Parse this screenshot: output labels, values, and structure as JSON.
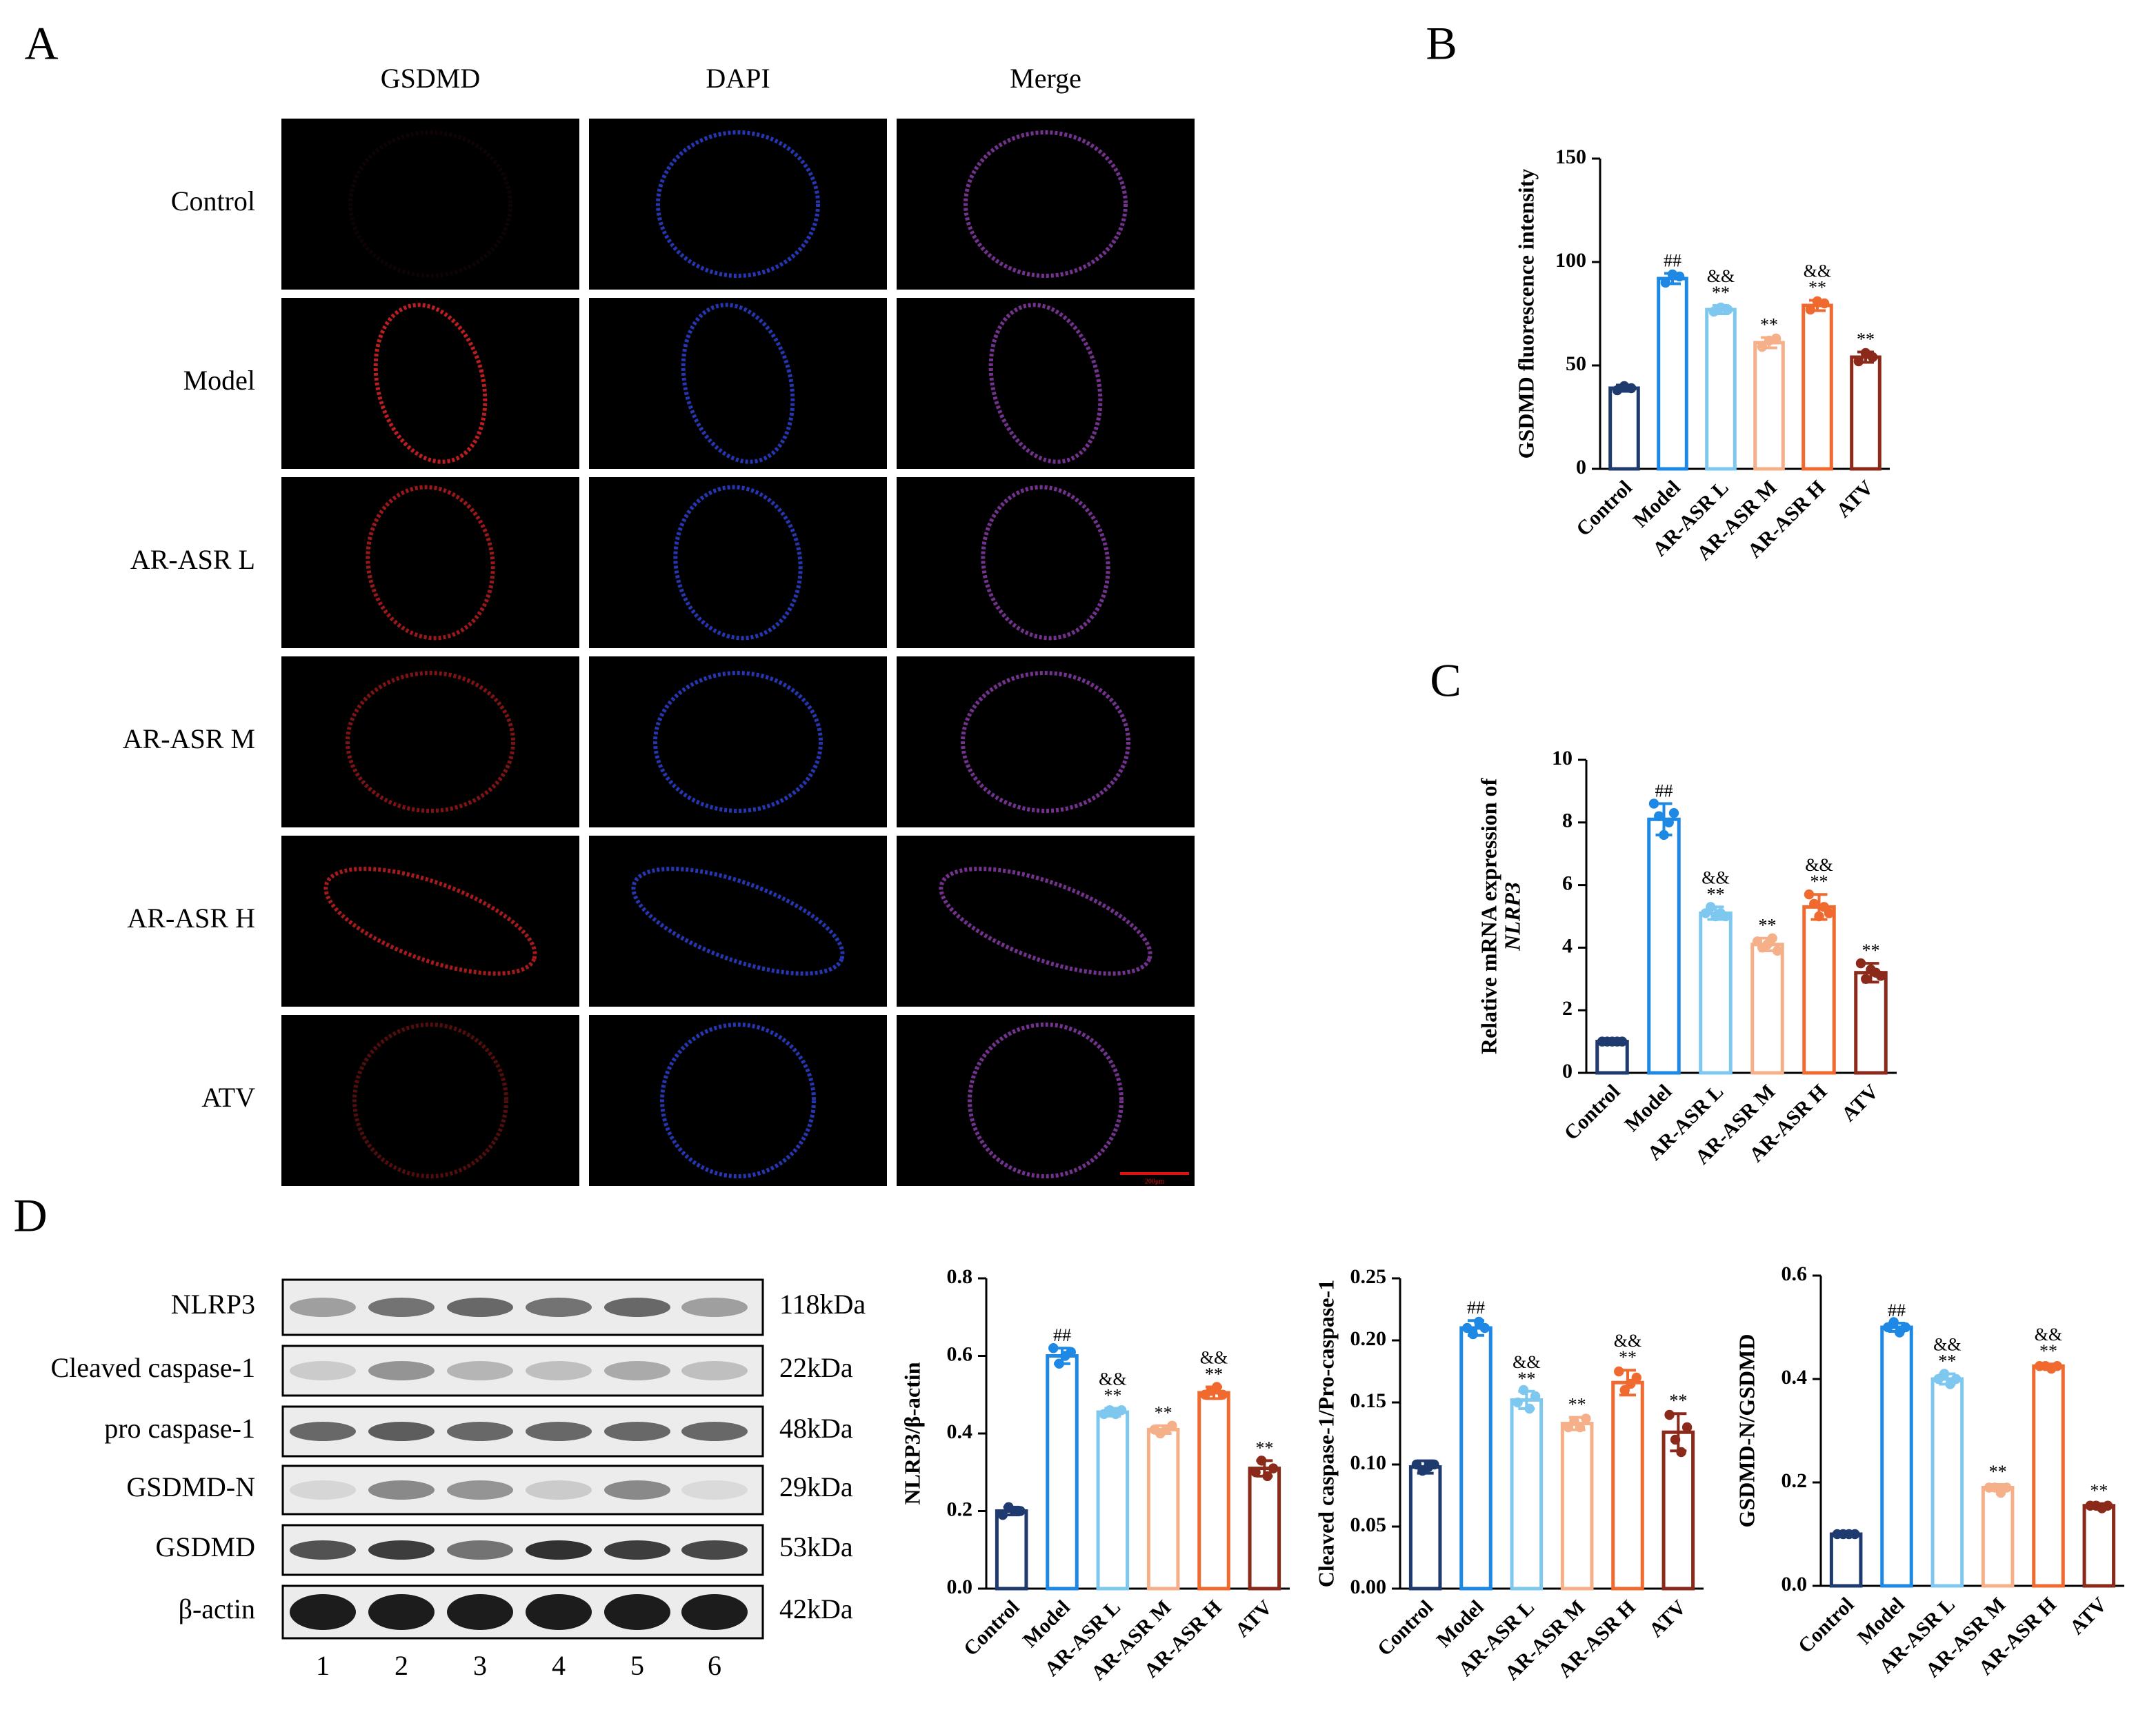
{
  "panel_labels": [
    "A",
    "B",
    "C",
    "D"
  ],
  "microscopy": {
    "columns": [
      "GSDMD",
      "DAPI",
      "Merge"
    ],
    "rows": [
      "Control",
      "Model",
      "AR-ASR L",
      "AR-ASR M",
      "AR-ASR H",
      "ATV"
    ],
    "scale_bar": "200μm"
  },
  "blot": {
    "proteins": [
      "NLRP3",
      "Cleaved caspase-1",
      "pro caspase-1",
      "GSDMD-N",
      "GSDMD",
      "β-actin"
    ],
    "sizes": [
      "118kDa",
      "22kDa",
      "48kDa",
      "29kDa",
      "53kDa",
      "42kDa"
    ],
    "lanes": [
      1,
      2,
      3,
      4,
      5,
      6
    ]
  },
  "chart_data": [
    {
      "type": "bar",
      "ylabel": [
        "GSDMD fluorescence intensity"
      ],
      "categories": [
        "Control",
        "Model",
        "AR-ASR L",
        "AR-ASR M",
        "AR-ASR H",
        "ATV"
      ],
      "colors": [
        "#1f3a6e",
        "#1e88e5",
        "#7ec8f0",
        "#f5b08a",
        "#f06a30",
        "#8b2a1a"
      ],
      "values": [
        39,
        92,
        77,
        61,
        79,
        54
      ],
      "errors": [
        1.5,
        2.5,
        2,
        2.5,
        2.5,
        2.5
      ],
      "points": [
        [
          38,
          40,
          39
        ],
        [
          90,
          94,
          93
        ],
        [
          76,
          78,
          77
        ],
        [
          59,
          62,
          63
        ],
        [
          77,
          81,
          80
        ],
        [
          52,
          56,
          54
        ]
      ],
      "annotations": [
        [],
        [
          "##"
        ],
        [
          "&&",
          "**"
        ],
        [
          "**"
        ],
        [
          "&&",
          "**"
        ],
        [
          "**"
        ]
      ],
      "ylim": [
        0,
        150
      ],
      "yticks": [
        0,
        50,
        100,
        150
      ]
    },
    {
      "type": "bar",
      "ylabel": [
        "Relative mRNA expression of",
        "NLRP3"
      ],
      "categories": [
        "Control",
        "Model",
        "AR-ASR L",
        "AR-ASR M",
        "AR-ASR H",
        "ATV"
      ],
      "colors": [
        "#1f3a6e",
        "#1e88e5",
        "#7ec8f0",
        "#f5b08a",
        "#f06a30",
        "#8b2a1a"
      ],
      "values": [
        1.0,
        8.1,
        5.1,
        4.1,
        5.3,
        3.2
      ],
      "errors": [
        0.05,
        0.5,
        0.2,
        0.2,
        0.4,
        0.3
      ],
      "points": [
        [
          1.0,
          1.0,
          1.0,
          1.0,
          1.0
        ],
        [
          8.6,
          8.2,
          7.6,
          8.0,
          8.3
        ],
        [
          5.1,
          5.3,
          5.0,
          5.1,
          5.0
        ],
        [
          4.2,
          4.0,
          4.1,
          4.3,
          3.9
        ],
        [
          5.7,
          5.4,
          5.0,
          5.3,
          5.1
        ],
        [
          3.5,
          3.0,
          3.3,
          3.2,
          3.1
        ]
      ],
      "annotations": [
        [],
        [
          "##"
        ],
        [
          "&&",
          "**"
        ],
        [
          "**"
        ],
        [
          "&&",
          "**"
        ],
        [
          "**"
        ]
      ],
      "ylim": [
        0,
        10
      ],
      "yticks": [
        0,
        2,
        4,
        6,
        8,
        10
      ]
    },
    {
      "type": "bar",
      "ylabel": [
        "NLRP3/β-actin"
      ],
      "categories": [
        "Control",
        "Model",
        "AR-ASR L",
        "AR-ASR M",
        "AR-ASR H",
        "ATV"
      ],
      "colors": [
        "#1f3a6e",
        "#1e88e5",
        "#7ec8f0",
        "#f5b08a",
        "#f06a30",
        "#8b2a1a"
      ],
      "values": [
        0.2,
        0.6,
        0.455,
        0.41,
        0.505,
        0.31
      ],
      "errors": [
        0.01,
        0.02,
        0.01,
        0.01,
        0.015,
        0.02
      ],
      "points": [
        [
          0.19,
          0.21,
          0.2,
          0.2
        ],
        [
          0.62,
          0.58,
          0.6,
          0.61
        ],
        [
          0.45,
          0.46,
          0.45,
          0.46
        ],
        [
          0.41,
          0.4,
          0.41,
          0.42
        ],
        [
          0.5,
          0.51,
          0.52,
          0.5
        ],
        [
          0.3,
          0.33,
          0.29,
          0.31
        ]
      ],
      "annotations": [
        [],
        [
          "##"
        ],
        [
          "&&",
          "**"
        ],
        [
          "**"
        ],
        [
          "&&",
          "**"
        ],
        [
          "**"
        ]
      ],
      "ylim": [
        0,
        0.8
      ],
      "yticks": [
        {
          "value": 0,
          "label": "0.0"
        },
        0.2,
        0.4,
        0.6,
        0.8
      ]
    },
    {
      "type": "bar",
      "ylabel": [
        "Cleaved caspase-1/Pro-caspase-1"
      ],
      "categories": [
        "Control",
        "Model",
        "AR-ASR L",
        "AR-ASR M",
        "AR-ASR H",
        "ATV"
      ],
      "colors": [
        "#1f3a6e",
        "#1e88e5",
        "#7ec8f0",
        "#f5b08a",
        "#f06a30",
        "#8b2a1a"
      ],
      "values": [
        0.098,
        0.21,
        0.152,
        0.133,
        0.166,
        0.126
      ],
      "errors": [
        0.005,
        0.006,
        0.007,
        0.005,
        0.01,
        0.015
      ],
      "points": [
        [
          0.1,
          0.095,
          0.098,
          0.1
        ],
        [
          0.21,
          0.205,
          0.215,
          0.21
        ],
        [
          0.15,
          0.16,
          0.145,
          0.155
        ],
        [
          0.13,
          0.135,
          0.13,
          0.137
        ],
        [
          0.175,
          0.16,
          0.165,
          0.17
        ],
        [
          0.14,
          0.12,
          0.11,
          0.13
        ]
      ],
      "annotations": [
        [],
        [
          "##"
        ],
        [
          "&&",
          "**"
        ],
        [
          "**"
        ],
        [
          "&&",
          "**"
        ],
        [
          "**"
        ]
      ],
      "ylim": [
        0,
        0.25
      ],
      "yticks": [
        {
          "value": 0,
          "label": "0.00"
        },
        {
          "value": 0.05,
          "label": "0.05"
        },
        {
          "value": 0.1,
          "label": "0.10"
        },
        {
          "value": 0.15,
          "label": "0.15"
        },
        {
          "value": 0.2,
          "label": "0.20"
        },
        {
          "value": 0.25,
          "label": "0.25"
        }
      ]
    },
    {
      "type": "bar",
      "ylabel": [
        "GSDMD-N/GSDMD"
      ],
      "categories": [
        "Control",
        "Model",
        "AR-ASR L",
        "AR-ASR M",
        "AR-ASR H",
        "ATV"
      ],
      "colors": [
        "#1f3a6e",
        "#1e88e5",
        "#7ec8f0",
        "#f5b08a",
        "#f06a30",
        "#8b2a1a"
      ],
      "values": [
        0.1,
        0.5,
        0.4,
        0.19,
        0.425,
        0.155
      ],
      "errors": [
        0.003,
        0.008,
        0.01,
        0.006,
        0.004,
        0.004
      ],
      "points": [
        [
          0.1,
          0.1,
          0.1,
          0.1
        ],
        [
          0.5,
          0.51,
          0.49,
          0.5
        ],
        [
          0.4,
          0.41,
          0.39,
          0.4
        ],
        [
          0.19,
          0.19,
          0.18,
          0.19
        ],
        [
          0.425,
          0.425,
          0.42,
          0.425
        ],
        [
          0.155,
          0.155,
          0.15,
          0.155
        ]
      ],
      "annotations": [
        [],
        [
          "##"
        ],
        [
          "&&",
          "**"
        ],
        [
          "**"
        ],
        [
          "&&",
          "**"
        ],
        [
          "**"
        ]
      ],
      "ylim": [
        0,
        0.6
      ],
      "yticks": [
        {
          "value": 0,
          "label": "0.0"
        },
        0.2,
        0.4,
        0.6
      ]
    }
  ]
}
